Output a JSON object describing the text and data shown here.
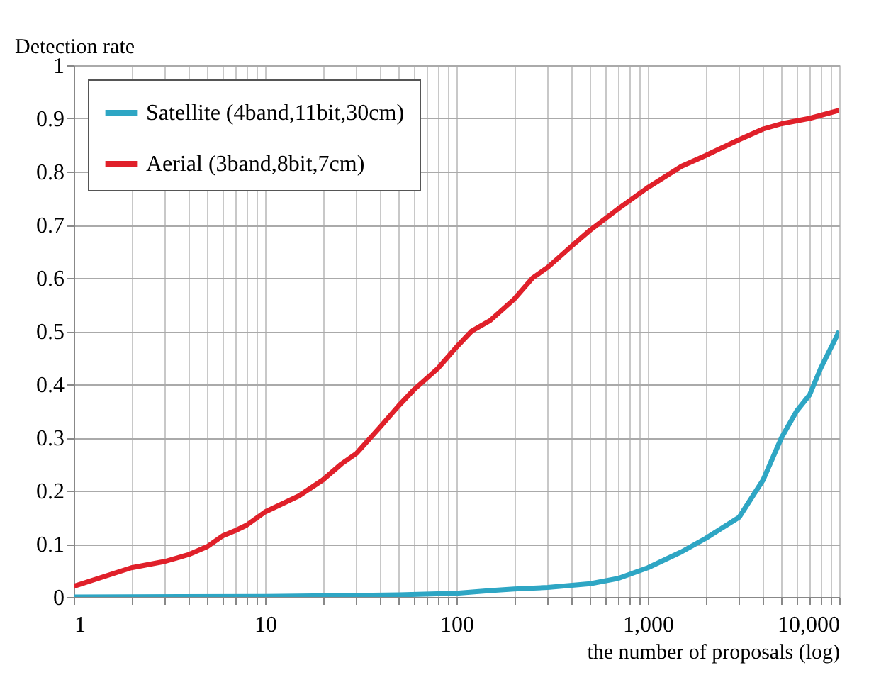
{
  "chart_data": {
    "type": "line",
    "xlabel": "the number of proposals (log)",
    "ylabel": "Detection rate",
    "log": "x",
    "xlim": [
      1,
      10000
    ],
    "ylim": [
      0,
      1
    ],
    "xticks": [
      1,
      {
        "value": 2,
        "label": null
      },
      {
        "value": 3,
        "label": null
      },
      {
        "value": 4,
        "label": null
      },
      {
        "value": 5,
        "label": null
      },
      {
        "value": 6,
        "label": null
      },
      {
        "value": 7,
        "label": null
      },
      {
        "value": 8,
        "label": null
      },
      {
        "value": 9,
        "label": null
      },
      10,
      {
        "value": 20,
        "label": null
      },
      {
        "value": 30,
        "label": null
      },
      {
        "value": 40,
        "label": null
      },
      {
        "value": 50,
        "label": null
      },
      {
        "value": 60,
        "label": null
      },
      {
        "value": 70,
        "label": null
      },
      {
        "value": 80,
        "label": null
      },
      {
        "value": 90,
        "label": null
      },
      100,
      {
        "value": 200,
        "label": null
      },
      {
        "value": 300,
        "label": null
      },
      {
        "value": 400,
        "label": null
      },
      {
        "value": 500,
        "label": null
      },
      {
        "value": 600,
        "label": null
      },
      {
        "value": 700,
        "label": null
      },
      {
        "value": 800,
        "label": null
      },
      {
        "value": 900,
        "label": null
      },
      {
        "value": 1000,
        "label": "1,000"
      },
      {
        "value": 2000,
        "label": null
      },
      {
        "value": 3000,
        "label": null
      },
      {
        "value": 4000,
        "label": null
      },
      {
        "value": 5000,
        "label": null
      },
      {
        "value": 6000,
        "label": null
      },
      {
        "value": 7000,
        "label": null
      },
      {
        "value": 8000,
        "label": null
      },
      {
        "value": 9000,
        "label": null
      },
      {
        "value": 10000,
        "label": "10,000"
      }
    ],
    "yticks": [
      0,
      0.1,
      0.2,
      0.3,
      0.4,
      0.5,
      0.6,
      0.7,
      0.8,
      0.9,
      1
    ],
    "grid": true,
    "legend": "top left",
    "marker": "none",
    "line_style": "solid",
    "series": [
      {
        "name": "Satellite (4band,11bit,30cm)",
        "color": "#2ea6c4",
        "x": [
          1,
          10,
          50,
          100,
          150,
          200,
          300,
          500,
          700,
          1000,
          1500,
          2000,
          3000,
          4000,
          5000,
          6000,
          7000,
          8000,
          10000
        ],
        "values": [
          0.0,
          0.001,
          0.004,
          0.007,
          0.012,
          0.015,
          0.018,
          0.025,
          0.035,
          0.055,
          0.085,
          0.11,
          0.15,
          0.22,
          0.3,
          0.35,
          0.38,
          0.43,
          0.5
        ]
      },
      {
        "name": "Aerial (3band,8bit,7cm)",
        "color": "#e0202a",
        "x": [
          1,
          2,
          3,
          4,
          5,
          6,
          7,
          8,
          10,
          15,
          20,
          25,
          30,
          40,
          50,
          60,
          80,
          100,
          120,
          150,
          200,
          250,
          300,
          400,
          500,
          700,
          1000,
          1500,
          2000,
          3000,
          4000,
          5000,
          7000,
          10000
        ],
        "values": [
          0.02,
          0.055,
          0.067,
          0.08,
          0.095,
          0.115,
          0.125,
          0.135,
          0.16,
          0.19,
          0.22,
          0.25,
          0.27,
          0.32,
          0.36,
          0.39,
          0.43,
          0.47,
          0.5,
          0.52,
          0.56,
          0.6,
          0.62,
          0.66,
          0.69,
          0.73,
          0.77,
          0.81,
          0.83,
          0.86,
          0.88,
          0.89,
          0.9,
          0.915
        ]
      }
    ]
  }
}
